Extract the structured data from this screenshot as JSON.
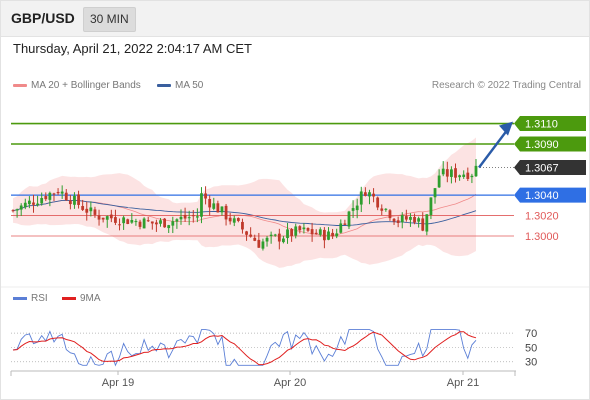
{
  "header": {
    "symbol": "GBP/USD",
    "timeframe": "30 MIN"
  },
  "datetime": "Thursday, April 21, 2022 2:04:17 AM CET",
  "legend": [
    {
      "label": "MA 20 + Bollinger Bands",
      "color": "#f08a8a"
    },
    {
      "label": "MA 50",
      "color": "#3a5f9e"
    }
  ],
  "copyright": "Research © 2022 Trading Central",
  "rsi_legend": [
    {
      "label": "RSI",
      "color": "#5b7fd6"
    },
    {
      "label": "9MA",
      "color": "#e02020"
    }
  ],
  "colors": {
    "up": "#2e9e2e",
    "down": "#c0392b",
    "target": "#4c9a0e",
    "pivot": "#2f6fe4",
    "support": "#e05a5a",
    "current": "#333333",
    "arrow": "#2a5ba8"
  },
  "chart_data": [
    {
      "type": "candlestick",
      "x_tick_labels": [
        "Apr 19",
        "Apr 20",
        "Apr 21"
      ],
      "ylim": [
        1.2955,
        1.3135
      ],
      "price_levels": [
        {
          "label": "1.3110",
          "value": 1.311,
          "role": "target"
        },
        {
          "label": "1.3090",
          "value": 1.309,
          "role": "target"
        },
        {
          "label": "1.3067",
          "value": 1.3067,
          "role": "current"
        },
        {
          "label": "1.3040",
          "value": 1.304,
          "role": "pivot"
        },
        {
          "label": "1.3020",
          "value": 1.302,
          "role": "support"
        },
        {
          "label": "1.3000",
          "value": 1.3,
          "role": "support"
        }
      ],
      "series": [
        {
          "name": "MA 20 + Bollinger Bands"
        },
        {
          "name": "MA 50"
        }
      ]
    },
    {
      "type": "line",
      "y_tick_labels": [
        "70",
        "50",
        "30"
      ],
      "y_ticks": [
        70,
        50,
        30
      ],
      "ylim": [
        10,
        80
      ],
      "series": [
        {
          "name": "RSI"
        },
        {
          "name": "9MA"
        }
      ]
    }
  ]
}
